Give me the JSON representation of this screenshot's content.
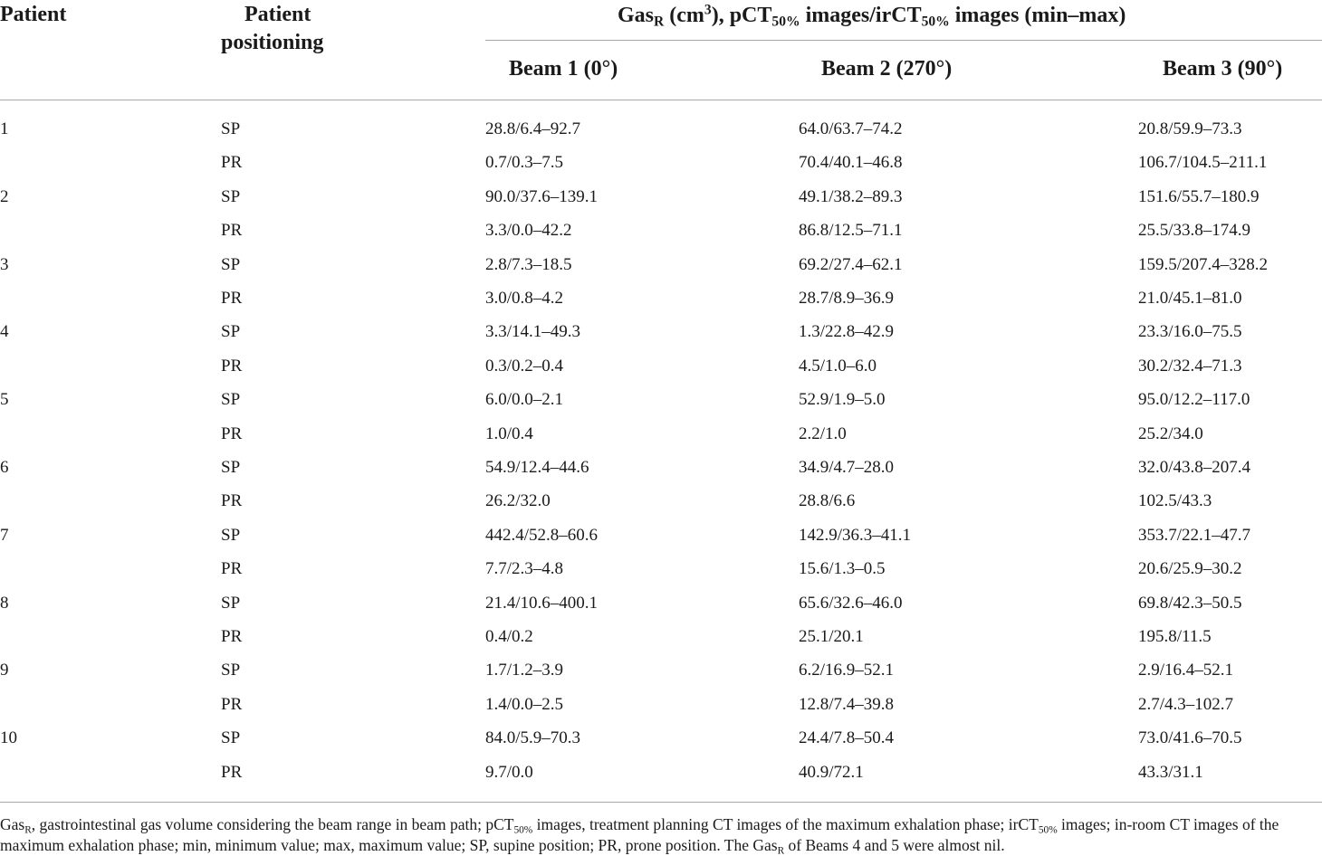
{
  "header": {
    "patient": "Patient",
    "positioning_line1": "Patient",
    "positioning_line2": "positioning",
    "group": {
      "gas": "Gas",
      "gas_sub": "R",
      "unit_open": " (cm",
      "unit_sup": "3",
      "mid": "), pCT",
      "pct_sub": "50%",
      "mid2": " images/irCT",
      "irct_sub": "50%",
      "tail": " images (min–max)"
    },
    "beams": [
      "Beam 1 (0°)",
      "Beam 2 (270°)",
      "Beam 3 (90°)"
    ]
  },
  "rows": [
    {
      "patient": "1",
      "pos": "SP",
      "b1": "28.8/6.4–92.7",
      "b2": "64.0/63.7–74.2",
      "b3": "20.8/59.9–73.3"
    },
    {
      "patient": "",
      "pos": "PR",
      "b1": "0.7/0.3–7.5",
      "b2": "70.4/40.1–46.8",
      "b3": "106.7/104.5–211.1"
    },
    {
      "patient": "2",
      "pos": "SP",
      "b1": "90.0/37.6–139.1",
      "b2": "49.1/38.2–89.3",
      "b3": "151.6/55.7–180.9"
    },
    {
      "patient": "",
      "pos": "PR",
      "b1": "3.3/0.0–42.2",
      "b2": "86.8/12.5–71.1",
      "b3": "25.5/33.8–174.9"
    },
    {
      "patient": "3",
      "pos": "SP",
      "b1": "2.8/7.3–18.5",
      "b2": "69.2/27.4–62.1",
      "b3": "159.5/207.4–328.2"
    },
    {
      "patient": "",
      "pos": "PR",
      "b1": "3.0/0.8–4.2",
      "b2": "28.7/8.9–36.9",
      "b3": "21.0/45.1–81.0"
    },
    {
      "patient": "4",
      "pos": "SP",
      "b1": "3.3/14.1–49.3",
      "b2": "1.3/22.8–42.9",
      "b3": "23.3/16.0–75.5"
    },
    {
      "patient": "",
      "pos": "PR",
      "b1": "0.3/0.2–0.4",
      "b2": "4.5/1.0–6.0",
      "b3": "30.2/32.4–71.3"
    },
    {
      "patient": "5",
      "pos": "SP",
      "b1": "6.0/0.0–2.1",
      "b2": "52.9/1.9–5.0",
      "b3": "95.0/12.2–117.0"
    },
    {
      "patient": "",
      "pos": "PR",
      "b1": "1.0/0.4",
      "b2": "2.2/1.0",
      "b3": "25.2/34.0"
    },
    {
      "patient": "6",
      "pos": "SP",
      "b1": "54.9/12.4–44.6",
      "b2": "34.9/4.7–28.0",
      "b3": "32.0/43.8–207.4"
    },
    {
      "patient": "",
      "pos": "PR",
      "b1": "26.2/32.0",
      "b2": "28.8/6.6",
      "b3": "102.5/43.3"
    },
    {
      "patient": "7",
      "pos": "SP",
      "b1": "442.4/52.8–60.6",
      "b2": "142.9/36.3–41.1",
      "b3": "353.7/22.1–47.7"
    },
    {
      "patient": "",
      "pos": "PR",
      "b1": "7.7/2.3–4.8",
      "b2": "15.6/1.3–0.5",
      "b3": "20.6/25.9–30.2"
    },
    {
      "patient": "8",
      "pos": "SP",
      "b1": "21.4/10.6–400.1",
      "b2": "65.6/32.6–46.0",
      "b3": "69.8/42.3–50.5"
    },
    {
      "patient": "",
      "pos": "PR",
      "b1": "0.4/0.2",
      "b2": "25.1/20.1",
      "b3": "195.8/11.5"
    },
    {
      "patient": "9",
      "pos": "SP",
      "b1": "1.7/1.2–3.9",
      "b2": "6.2/16.9–52.1",
      "b3": "2.9/16.4–52.1"
    },
    {
      "patient": "",
      "pos": "PR",
      "b1": "1.4/0.0–2.5",
      "b2": "12.8/7.4–39.8",
      "b3": "2.7/4.3–102.7"
    },
    {
      "patient": "10",
      "pos": "SP",
      "b1": "84.0/5.9–70.3",
      "b2": "24.4/7.8–50.4",
      "b3": "73.0/41.6–70.5"
    },
    {
      "patient": "",
      "pos": "PR",
      "b1": "9.7/0.0",
      "b2": "40.9/72.1",
      "b3": "43.3/31.1"
    }
  ],
  "footnote": {
    "gas": "Gas",
    "gas_sub": "R",
    "t1": ", gastrointestinal gas volume considering the beam range in beam path; pCT",
    "pct_sub": "50%",
    "t2": " images, treatment planning CT images of the maximum exhalation phase; irCT",
    "irct_sub": "50%",
    "t3": " images; in-room CT images of the maximum exhalation phase; min, minimum value; max, maximum value; SP, supine position; PR, prone position. The Gas",
    "gas_sub2": "R",
    "t4": "  of Beams 4 and 5 were almost nil."
  }
}
